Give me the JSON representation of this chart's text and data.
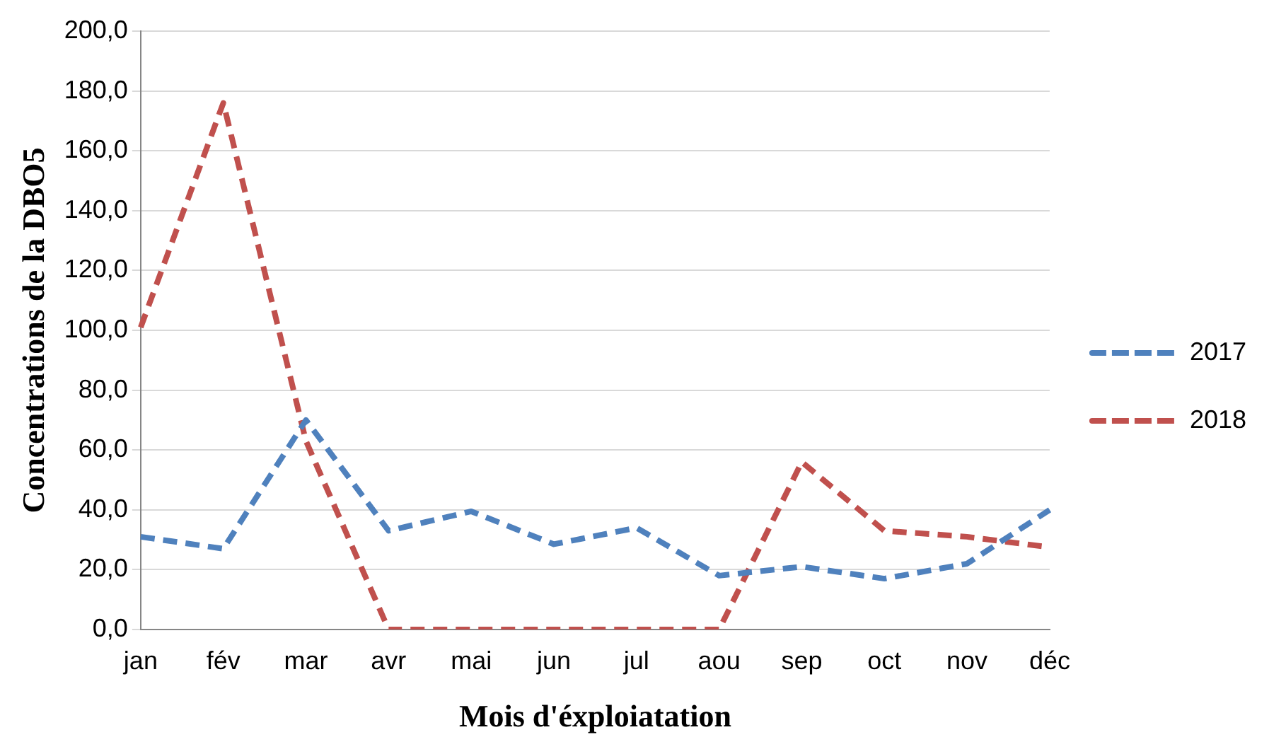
{
  "chart_data": {
    "type": "line",
    "xlabel": "Mois d'éxploiatation",
    "ylabel": "Concentrations de la DBO5",
    "categories": [
      "jan",
      "fév",
      "mar",
      "avr",
      "mai",
      "jun",
      "jul",
      "aou",
      "sep",
      "oct",
      "nov",
      "déc"
    ],
    "series": [
      {
        "name": "2017",
        "color": "#4f81bd",
        "values": [
          31,
          27,
          70,
          33,
          39.5,
          28.5,
          34,
          18,
          21,
          17,
          22,
          40
        ]
      },
      {
        "name": "2018",
        "color": "#c0504d",
        "values": [
          101,
          176,
          63,
          0,
          0,
          0,
          0,
          0,
          56,
          33,
          31,
          27.5
        ]
      }
    ],
    "ylim": [
      0,
      200
    ],
    "yticks": [
      {
        "value": 0,
        "label": "0,0"
      },
      {
        "value": 20,
        "label": "20,0"
      },
      {
        "value": 40,
        "label": "40,0"
      },
      {
        "value": 60,
        "label": "60,0"
      },
      {
        "value": 80,
        "label": "80,0"
      },
      {
        "value": 100,
        "label": "100,0"
      },
      {
        "value": 120,
        "label": "120,0"
      },
      {
        "value": 140,
        "label": "140,0"
      },
      {
        "value": 160,
        "label": "160,0"
      },
      {
        "value": 180,
        "label": "180,0"
      },
      {
        "value": 200,
        "label": "200,0"
      }
    ],
    "grid": "y",
    "legend": "right",
    "marker": "none",
    "line_style": "dashed"
  }
}
